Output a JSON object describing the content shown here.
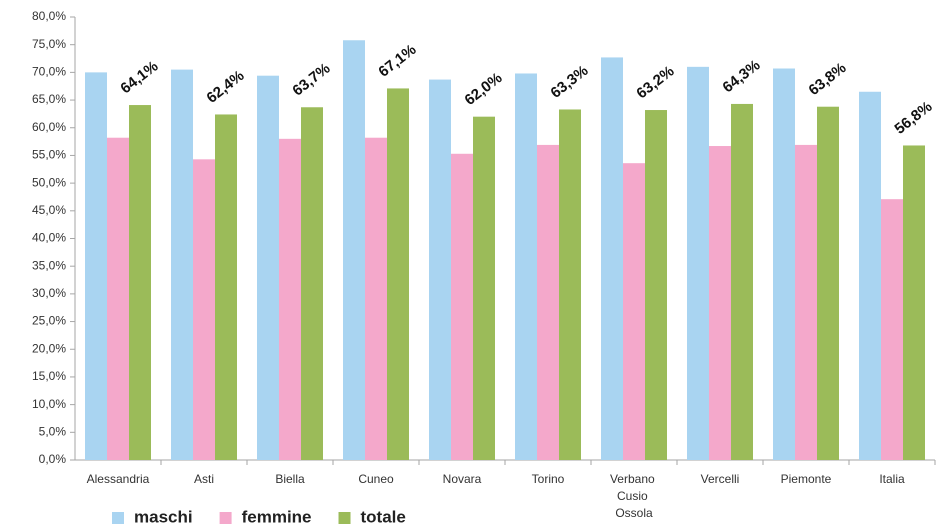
{
  "chart_data": {
    "type": "bar",
    "categories": [
      "Alessandria",
      "Asti",
      "Biella",
      "Cuneo",
      "Novara",
      "Torino",
      "Verbano Cusio Ossola",
      "Vercelli",
      "Piemonte",
      "Italia"
    ],
    "series": [
      {
        "name": "maschi",
        "color": "#a9d4f1",
        "values": [
          70.0,
          70.5,
          69.4,
          75.8,
          68.7,
          69.8,
          72.7,
          71.0,
          70.7,
          66.5
        ]
      },
      {
        "name": "femmine",
        "color": "#f4a8cb",
        "values": [
          58.2,
          54.3,
          58.0,
          58.2,
          55.3,
          56.9,
          53.6,
          56.7,
          56.9,
          47.1
        ]
      },
      {
        "name": "totale",
        "color": "#9bbb59",
        "values": [
          64.1,
          62.4,
          63.7,
          67.1,
          62.0,
          63.3,
          63.2,
          64.3,
          63.8,
          56.8
        ],
        "value_labels": [
          "64,1%",
          "62,4%",
          "63,7%",
          "67,1%",
          "62,0%",
          "63,3%",
          "63,2%",
          "64,3%",
          "63,8%",
          "56,8%"
        ]
      }
    ],
    "ylim": [
      0,
      80
    ],
    "yticks": [
      {
        "value": 0,
        "label": "0,0%"
      },
      {
        "value": 5,
        "label": "5,0%"
      },
      {
        "value": 10,
        "label": "10,0%"
      },
      {
        "value": 15,
        "label": "15,0%"
      },
      {
        "value": 20,
        "label": "20,0%"
      },
      {
        "value": 25,
        "label": "25,0%"
      },
      {
        "value": 30,
        "label": "30,0%"
      },
      {
        "value": 35,
        "label": "35,0%"
      },
      {
        "value": 40,
        "label": "40,0%"
      },
      {
        "value": 45,
        "label": "45,0%"
      },
      {
        "value": 50,
        "label": "50,0%"
      },
      {
        "value": 55,
        "label": "55,0%"
      },
      {
        "value": 60,
        "label": "60,0%"
      },
      {
        "value": 65,
        "label": "65,0%"
      },
      {
        "value": 70,
        "label": "70,0%"
      },
      {
        "value": 75,
        "label": "75,0%"
      },
      {
        "value": 80,
        "label": "80,0%"
      }
    ],
    "grid": false,
    "legend": "bottom-left"
  }
}
